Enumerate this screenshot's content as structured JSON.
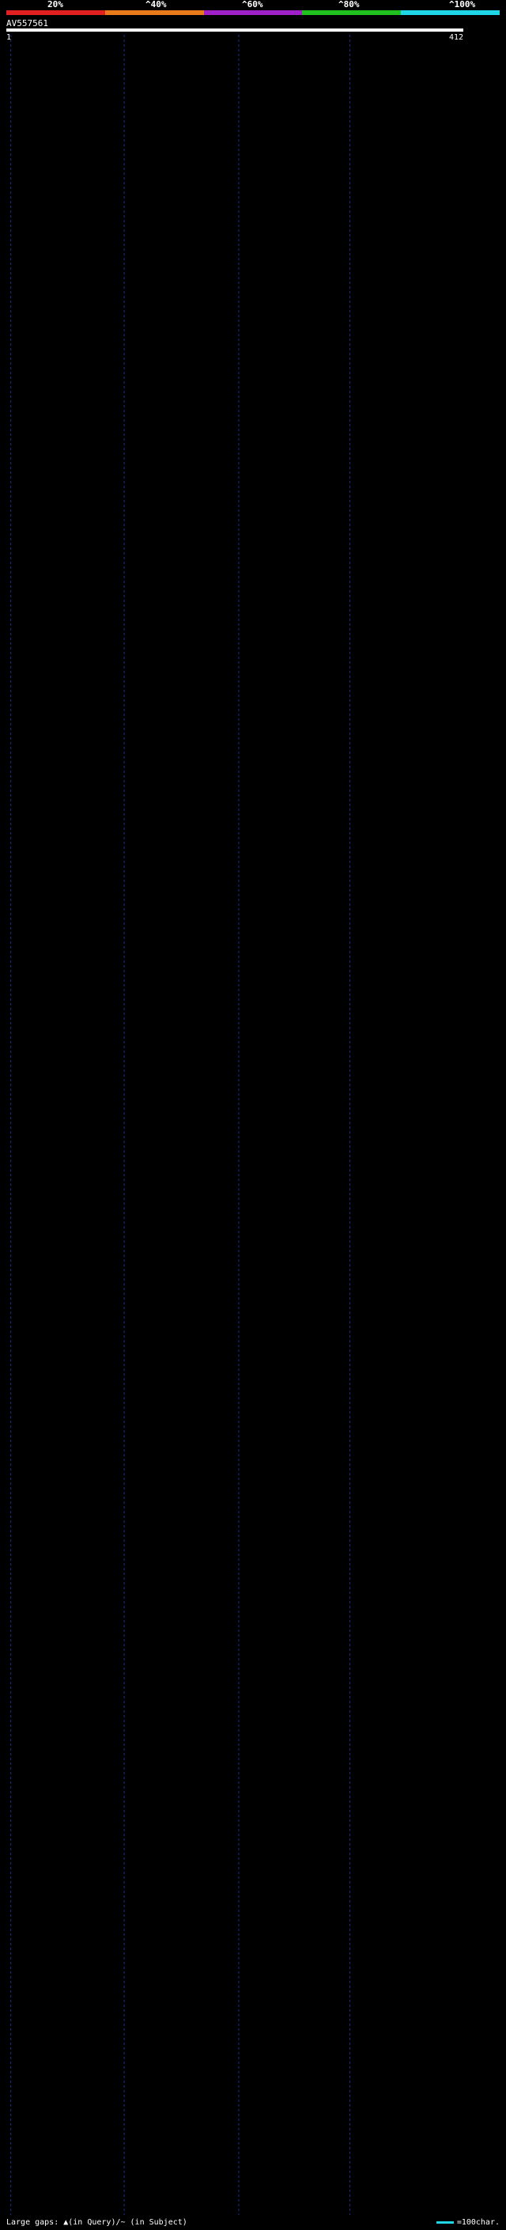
{
  "query": {
    "name": "AV557561",
    "start_label": "1",
    "end_label": "412"
  },
  "scale": {
    "labels": [
      "20%",
      "^40%",
      "^60%",
      "^80%",
      "^100%"
    ],
    "colors": [
      "#e0201e",
      "#e87a1c",
      "#a020c8",
      "#20c020",
      "#1ed6e6"
    ]
  },
  "footer": {
    "gaps_legend": "Large gaps: ▲(in Query)/~ (in Subject)",
    "scale_legend": "=100char."
  },
  "colors": {
    "cyan": "#1ed6e6",
    "green": "#2ec82e",
    "magenta": "#d23ed2",
    "background": "#000000",
    "grid": "#1f2f8f"
  },
  "chart_data": {
    "type": "alignment_hits",
    "query_length": 412,
    "x_range": [
      1,
      412
    ],
    "hits": []
  }
}
